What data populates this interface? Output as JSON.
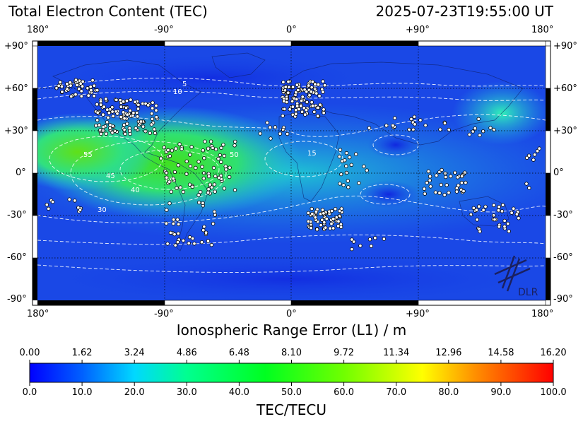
{
  "title": "Total Electron Content (TEC)",
  "timestamp": "2025-07-23T19:55:00 UT",
  "lon_ticks": [
    "180°",
    "-90°",
    "0°",
    "+90°",
    "180°"
  ],
  "lat_ticks": [
    "+90°",
    "+60°",
    "+30°",
    "0°",
    "-30°",
    "-60°",
    "-90°"
  ],
  "map_axis_label": "Ionospheric Range Error (L1) / m",
  "range_error_ticks": [
    "0.00",
    "1.62",
    "3.24",
    "4.86",
    "6.48",
    "8.10",
    "9.72",
    "11.34",
    "12.96",
    "14.58",
    "16.20"
  ],
  "tec_ticks": [
    "0.0",
    "10.0",
    "20.0",
    "30.0",
    "40.0",
    "50.0",
    "60.0",
    "70.0",
    "80.0",
    "90.0",
    "100.0"
  ],
  "colorbar_label": "TEC/TECU",
  "logo_text": "DLR",
  "contour_labels": [
    "5",
    "10",
    "15",
    "30",
    "40",
    "45",
    "50",
    "55",
    "60"
  ],
  "colors": {
    "low": "#1030e0",
    "mid": "#20e0e0",
    "high": "#30e020",
    "max": "#d01010"
  }
}
